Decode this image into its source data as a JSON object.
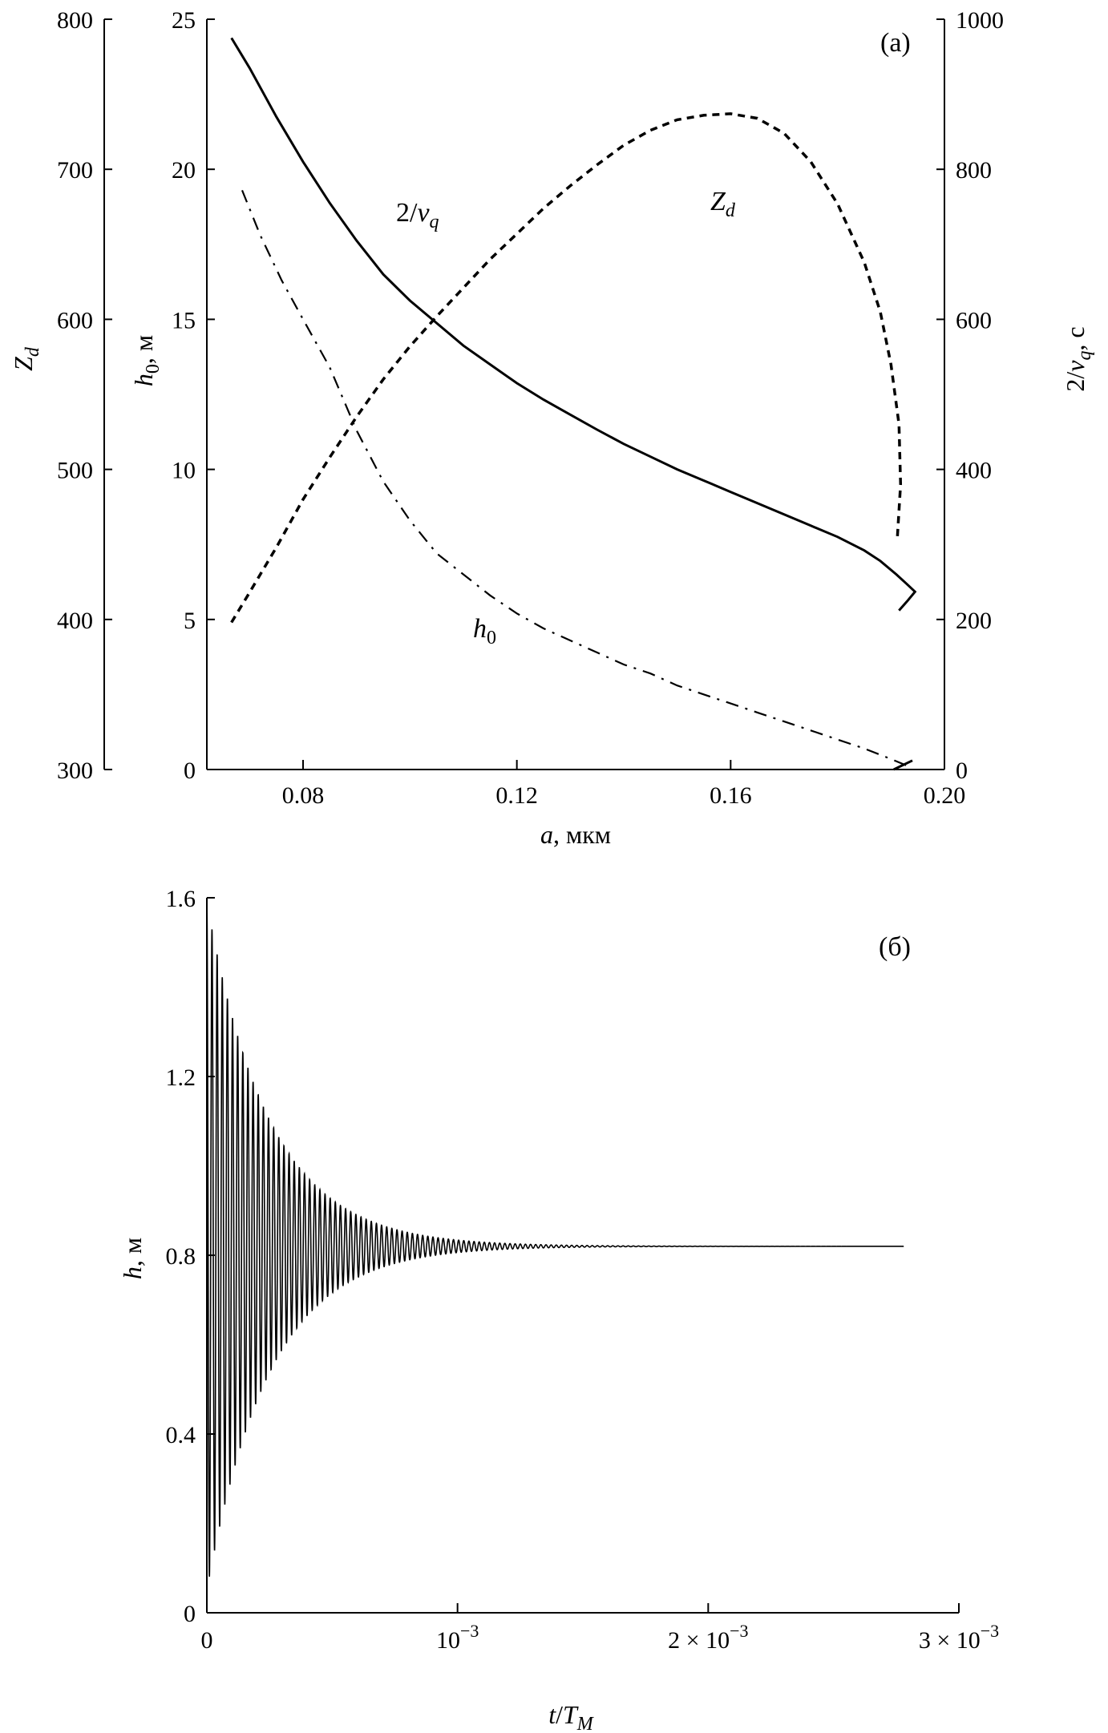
{
  "chart_data": [
    {
      "type": "line",
      "panel_label": "(а)",
      "xlabel": {
        "var": "a",
        "unit": ", мкм"
      },
      "xlim": [
        0.062,
        0.2
      ],
      "xticks": [
        "0.08",
        "0.12",
        "0.16",
        "0.20"
      ],
      "xtick_values": [
        0.08,
        0.12,
        0.16,
        0.2
      ],
      "axes": {
        "zd": {
          "label_var": "Z",
          "label_sub": "d",
          "lim": [
            300,
            800
          ],
          "ticks": [
            "300",
            "400",
            "500",
            "600",
            "700",
            "800"
          ],
          "tick_values": [
            300,
            400,
            500,
            600,
            700,
            800
          ]
        },
        "h0": {
          "label_var": "h",
          "label_sub": "0",
          "label_unit": ", м",
          "lim": [
            0,
            25
          ],
          "ticks": [
            "0",
            "5",
            "10",
            "15",
            "20",
            "25"
          ],
          "tick_values": [
            0,
            5,
            10,
            15,
            20,
            25
          ]
        },
        "nu": {
          "label_pre": "2/",
          "label_var": "ν",
          "label_sub": "q",
          "label_unit": ", c",
          "lim": [
            0,
            1000
          ],
          "ticks": [
            "0",
            "200",
            "400",
            "600",
            "800",
            "1000"
          ],
          "tick_values": [
            0,
            200,
            400,
            600,
            800,
            1000
          ]
        }
      },
      "annotations": {
        "nu": {
          "pre": "2/",
          "var": "ν",
          "sub": "q"
        },
        "zd": {
          "var": "Z",
          "sub": "d"
        },
        "h0": {
          "var": "h",
          "sub": "0"
        }
      },
      "series": [
        {
          "name": "2/νq",
          "axis": "nu",
          "style": "solid",
          "x": [
            0.0666,
            0.07,
            0.075,
            0.08,
            0.085,
            0.09,
            0.095,
            0.1,
            0.105,
            0.11,
            0.115,
            0.12,
            0.125,
            0.13,
            0.135,
            0.14,
            0.145,
            0.15,
            0.155,
            0.16,
            0.165,
            0.17,
            0.175,
            0.18,
            0.185,
            0.188,
            0.191,
            0.193,
            0.1945,
            0.193,
            0.1915
          ],
          "y": [
            975,
            935,
            870,
            810,
            755,
            705,
            660,
            625,
            595,
            565,
            540,
            515,
            493,
            473,
            453,
            434,
            417,
            400,
            385,
            370,
            355,
            340,
            325,
            310,
            292,
            278,
            260,
            247,
            237,
            224,
            212
          ]
        },
        {
          "name": "Zd",
          "axis": "zd",
          "style": "dashed",
          "x": [
            0.0666,
            0.07,
            0.075,
            0.08,
            0.085,
            0.09,
            0.095,
            0.1,
            0.105,
            0.11,
            0.115,
            0.12,
            0.125,
            0.13,
            0.135,
            0.14,
            0.145,
            0.15,
            0.155,
            0.16,
            0.165,
            0.17,
            0.175,
            0.18,
            0.185,
            0.188,
            0.19,
            0.1915,
            0.1918,
            0.1912
          ],
          "y": [
            398,
            418,
            448,
            480,
            508,
            535,
            560,
            582,
            602,
            621,
            640,
            657,
            674,
            689,
            703,
            716,
            726,
            733,
            736,
            737,
            734,
            724,
            705,
            677,
            638,
            605,
            570,
            530,
            490,
            455
          ]
        },
        {
          "name": "h0",
          "axis": "h0",
          "style": "dashdot",
          "x": [
            0.0686,
            0.072,
            0.076,
            0.08,
            0.085,
            0.09,
            0.095,
            0.1,
            0.105,
            0.11,
            0.115,
            0.12,
            0.125,
            0.13,
            0.135,
            0.14,
            0.145,
            0.15,
            0.155,
            0.16,
            0.165,
            0.17,
            0.175,
            0.18,
            0.185,
            0.19,
            0.194
          ],
          "y": [
            19.3,
            17.8,
            16.3,
            15.0,
            13.4,
            11.3,
            9.6,
            8.3,
            7.2,
            6.5,
            5.8,
            5.2,
            4.7,
            4.3,
            3.9,
            3.5,
            3.2,
            2.8,
            2.5,
            2.2,
            1.9,
            1.6,
            1.3,
            1.0,
            0.7,
            0.35,
            0.05
          ]
        },
        {
          "name": "tail",
          "axis": "h0",
          "style": "solid",
          "x": [
            0.1905,
            0.194
          ],
          "y": [
            0.0,
            0.3
          ]
        }
      ]
    },
    {
      "type": "line",
      "panel_label": "(б)",
      "xlabel": {
        "var": "t",
        "mid": "/",
        "var2": "T",
        "sub": "M"
      },
      "ylabel": {
        "var": "h",
        "unit": ", м"
      },
      "xlim": [
        0,
        0.003
      ],
      "ylim": [
        0,
        1.6
      ],
      "xticks": [
        {
          "value": 0,
          "mant": "",
          "base": "",
          "exp": "",
          "text": "0"
        },
        {
          "value": 0.001,
          "mant": "",
          "base": "10",
          "exp": "−3"
        },
        {
          "value": 0.002,
          "mant": "2 × ",
          "base": "10",
          "exp": "−3"
        },
        {
          "value": 0.003,
          "mant": "3 × ",
          "base": "10",
          "exp": "−3"
        }
      ],
      "yticks": [
        "0",
        "0.4",
        "0.8",
        "1.2",
        "1.6"
      ],
      "ytick_values": [
        0,
        0.4,
        0.8,
        1.2,
        1.6
      ],
      "series": [
        {
          "name": "h",
          "description": "damped oscillation",
          "equilibrium": 0.82,
          "initial_peak": 1.62,
          "initial_trough": 0.08,
          "period": 2.05e-05,
          "decay_time": 0.00025,
          "t_end": 0.00278
        }
      ]
    }
  ]
}
